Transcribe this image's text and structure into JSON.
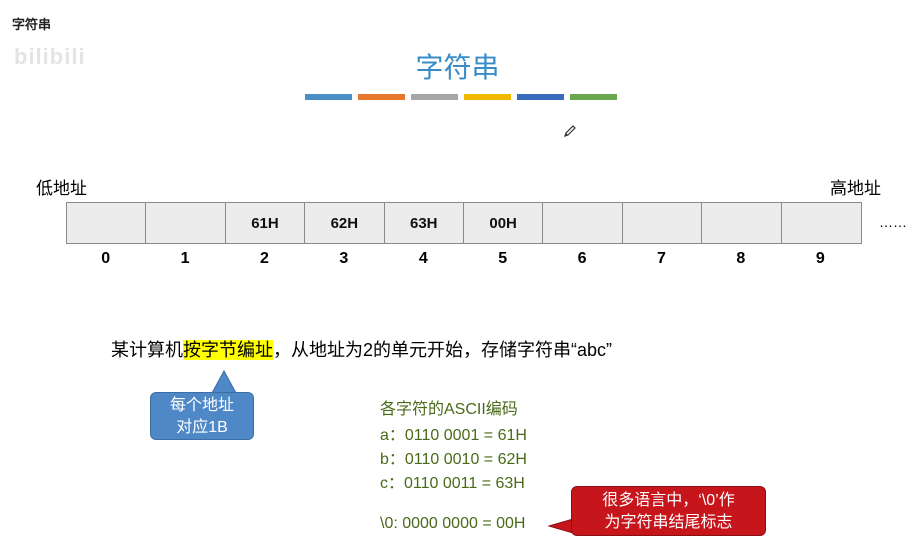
{
  "header": {
    "label": "字符串"
  },
  "watermark": "bilibili",
  "title": "字符串",
  "color_bar": [
    "#4a90c8",
    "#e8772e",
    "#a6a6a6",
    "#f2b800",
    "#3a6bbd",
    "#6aa84f"
  ],
  "labels": {
    "low": "低地址",
    "high": "高地址",
    "ellipsis": "……"
  },
  "memory": {
    "cells": [
      "",
      "",
      "61H",
      "62H",
      "63H",
      "00H",
      "",
      "",
      "",
      ""
    ],
    "addresses": [
      "0",
      "1",
      "2",
      "3",
      "4",
      "5",
      "6",
      "7",
      "8",
      "9"
    ]
  },
  "sentence": {
    "part1": "某计算机",
    "highlight": "按字节编址",
    "part2": "，从地址为2的单元开始，存储字符串“abc”"
  },
  "callout_blue": {
    "line1": "每个地址",
    "line2": "对应1B"
  },
  "ascii": {
    "title": "各字符的ASCII编码",
    "rows": [
      "a：0110 0001 = 61H",
      "b：0110 0010 = 62H",
      "c：0110 0011 = 63H"
    ],
    "null_row": "\\0: 0000 0000 = 00H"
  },
  "callout_red": {
    "line1": "很多语言中，‘\\0’作",
    "line2": "为字符串结尾标志"
  }
}
